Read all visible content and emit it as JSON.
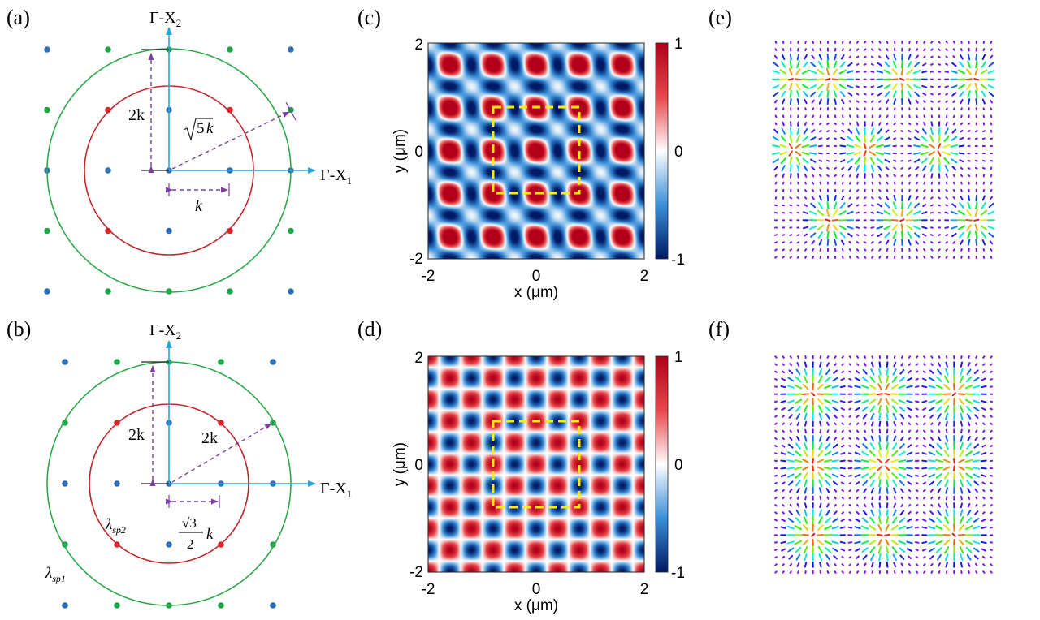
{
  "panels": {
    "a": {
      "tag": "(a)",
      "axis_x": "Γ-X",
      "axis_x_sub": "1",
      "axis_y": "Γ-X",
      "axis_y_sub": "2",
      "label_vertical": "2k",
      "label_diagonal_root": "5",
      "label_diagonal_k": "k",
      "label_horizontal": "k"
    },
    "b": {
      "tag": "(b)",
      "axis_x": "Γ-X",
      "axis_x_sub": "1",
      "axis_y": "Γ-X",
      "axis_y_sub": "2",
      "label_vertical": "2k",
      "label_diagonal": "2k",
      "label_frac_num": "√3",
      "label_frac_den": "2",
      "label_frac_k": "k",
      "label_lambda_inner": "λ",
      "label_lambda_inner_sub": "sp2",
      "label_lambda_outer": "λ",
      "label_lambda_outer_sub": "sp1"
    },
    "c": {
      "tag": "(c)",
      "xlabel": "x (μm)",
      "ylabel": "y (μm)",
      "xticks": [
        "-2",
        "0",
        "2"
      ],
      "yticks": [
        "2",
        "0",
        "-2"
      ],
      "cbar_ticks": [
        "1",
        "0",
        "-1"
      ]
    },
    "d": {
      "tag": "(d)",
      "xlabel": "x (μm)",
      "ylabel": "y (μm)",
      "xticks": [
        "-2",
        "0",
        "2"
      ],
      "yticks": [
        "2",
        "0",
        "-2"
      ],
      "cbar_ticks": [
        "1",
        "0",
        "-1"
      ]
    },
    "e": {
      "tag": "(e)"
    },
    "f": {
      "tag": "(f)"
    }
  },
  "colors": {
    "inner_circle": "#c0272d",
    "outer_circle": "#2ea84a",
    "lattice_blue": "#2f6fb5",
    "lattice_red": "#e1262b",
    "lattice_green": "#1fa64a",
    "axis": "#2ba3dd",
    "dashed": "#7a3fa0",
    "box": "#ffee00"
  },
  "chart_data": [
    {
      "type": "heatmap",
      "panel": "c",
      "x_range": [
        -2,
        2
      ],
      "y_range": [
        -2,
        2
      ],
      "color_range": [
        -1,
        1
      ],
      "xlabel": "x (μm)",
      "ylabel": "y (μm)",
      "highlight_box": {
        "x": [
          -0.8,
          0.8
        ],
        "y": [
          -0.8,
          0.8
        ]
      }
    },
    {
      "type": "heatmap",
      "panel": "d",
      "x_range": [
        -2,
        2
      ],
      "y_range": [
        -2,
        2
      ],
      "color_range": [
        -1,
        1
      ],
      "xlabel": "x (μm)",
      "ylabel": "y (μm)",
      "highlight_box": {
        "x": [
          -0.8,
          0.8
        ],
        "y": [
          -0.8,
          0.8
        ]
      }
    }
  ]
}
